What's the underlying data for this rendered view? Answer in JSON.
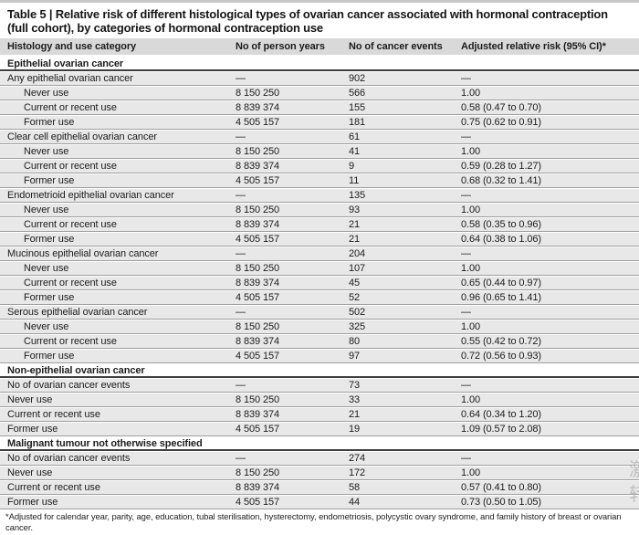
{
  "title": "Table 5 | Relative risk of different histological types of ovarian cancer associated with hormonal contraception (full cohort), by categories of hormonal contraception use",
  "columns": [
    "Histology and use category",
    "No of person years",
    "No of cancer events",
    "Adjusted relative risk (95% CI)*"
  ],
  "sections": [
    {
      "header": "Epithelial ovarian cancer",
      "rows": [
        {
          "label": "Any epithelial ovarian cancer",
          "indent": false,
          "person_years": "—",
          "events": "902",
          "rr": "—"
        },
        {
          "label": "Never use",
          "indent": true,
          "person_years": "8 150 250",
          "events": "566",
          "rr": "1.00"
        },
        {
          "label": "Current or recent use",
          "indent": true,
          "person_years": "8 839 374",
          "events": "155",
          "rr": "0.58 (0.47 to 0.70)"
        },
        {
          "label": "Former use",
          "indent": true,
          "person_years": "4 505 157",
          "events": "181",
          "rr": "0.75 (0.62 to 0.91)"
        },
        {
          "label": "Clear cell epithelial ovarian cancer",
          "indent": false,
          "person_years": "—",
          "events": "61",
          "rr": "—"
        },
        {
          "label": "Never use",
          "indent": true,
          "person_years": "8 150 250",
          "events": "41",
          "rr": "1.00"
        },
        {
          "label": "Current or recent use",
          "indent": true,
          "person_years": "8 839 374",
          "events": "9",
          "rr": "0.59 (0.28 to 1.27)"
        },
        {
          "label": "Former use",
          "indent": true,
          "person_years": "4 505 157",
          "events": "11",
          "rr": "0.68 (0.32 to 1.41)"
        },
        {
          "label": "Endometrioid epithelial ovarian cancer",
          "indent": false,
          "person_years": "—",
          "events": "135",
          "rr": "—"
        },
        {
          "label": "Never use",
          "indent": true,
          "person_years": "8 150 250",
          "events": "93",
          "rr": "1.00"
        },
        {
          "label": "Current or recent use",
          "indent": true,
          "person_years": "8 839 374",
          "events": "21",
          "rr": "0.58 (0.35 to 0.96)"
        },
        {
          "label": "Former use",
          "indent": true,
          "person_years": "4 505 157",
          "events": "21",
          "rr": "0.64 (0.38 to 1.06)"
        },
        {
          "label": "Mucinous epithelial ovarian cancer",
          "indent": false,
          "person_years": "—",
          "events": "204",
          "rr": "—"
        },
        {
          "label": "Never use",
          "indent": true,
          "person_years": "8 150 250",
          "events": "107",
          "rr": "1.00"
        },
        {
          "label": "Current or recent use",
          "indent": true,
          "person_years": "8 839 374",
          "events": "45",
          "rr": "0.65 (0.44 to 0.97)"
        },
        {
          "label": "Former use",
          "indent": true,
          "person_years": "4 505 157",
          "events": "52",
          "rr": "0.96 (0.65 to 1.41)"
        },
        {
          "label": "Serous epithelial ovarian cancer",
          "indent": false,
          "person_years": "—",
          "events": "502",
          "rr": "—"
        },
        {
          "label": "Never use",
          "indent": true,
          "person_years": "8 150 250",
          "events": "325",
          "rr": "1.00"
        },
        {
          "label": "Current or recent use",
          "indent": true,
          "person_years": "8 839 374",
          "events": "80",
          "rr": "0.55 (0.42 to 0.72)"
        },
        {
          "label": "Former use",
          "indent": true,
          "person_years": "4 505 157",
          "events": "97",
          "rr": "0.72 (0.56 to 0.93)"
        }
      ]
    },
    {
      "header": "Non-epithelial ovarian cancer",
      "rows": [
        {
          "label": "No of ovarian cancer events",
          "indent": false,
          "person_years": "—",
          "events": "73",
          "rr": "—"
        },
        {
          "label": "Never use",
          "indent": false,
          "person_years": "8 150 250",
          "events": "33",
          "rr": "1.00"
        },
        {
          "label": "Current or recent use",
          "indent": false,
          "person_years": "8 839 374",
          "events": "21",
          "rr": "0.64 (0.34 to 1.20)"
        },
        {
          "label": "Former use",
          "indent": false,
          "person_years": "4 505 157",
          "events": "19",
          "rr": "1.09 (0.57 to 2.08)"
        }
      ]
    },
    {
      "header": "Malignant tumour not otherwise specified",
      "rows": [
        {
          "label": "No of ovarian cancer events",
          "indent": false,
          "person_years": "—",
          "events": "274",
          "rr": "—"
        },
        {
          "label": "Never use",
          "indent": false,
          "person_years": "8 150 250",
          "events": "172",
          "rr": "1.00"
        },
        {
          "label": "Current or recent use",
          "indent": false,
          "person_years": "8 839 374",
          "events": "58",
          "rr": "0.57 (0.41 to 0.80)"
        },
        {
          "label": "Former use",
          "indent": false,
          "person_years": "4 505 157",
          "events": "44",
          "rr": "0.73 (0.50 to 1.05)"
        }
      ]
    }
  ],
  "footnote": "*Adjusted for calendar year, parity, age, education, tubal sterilisation, hysterectomy, endometriosis, polycystic ovary syndrome, and family history of breast or ovarian cancer.",
  "watermarks": {
    "w1": "激",
    "w2": "转"
  }
}
